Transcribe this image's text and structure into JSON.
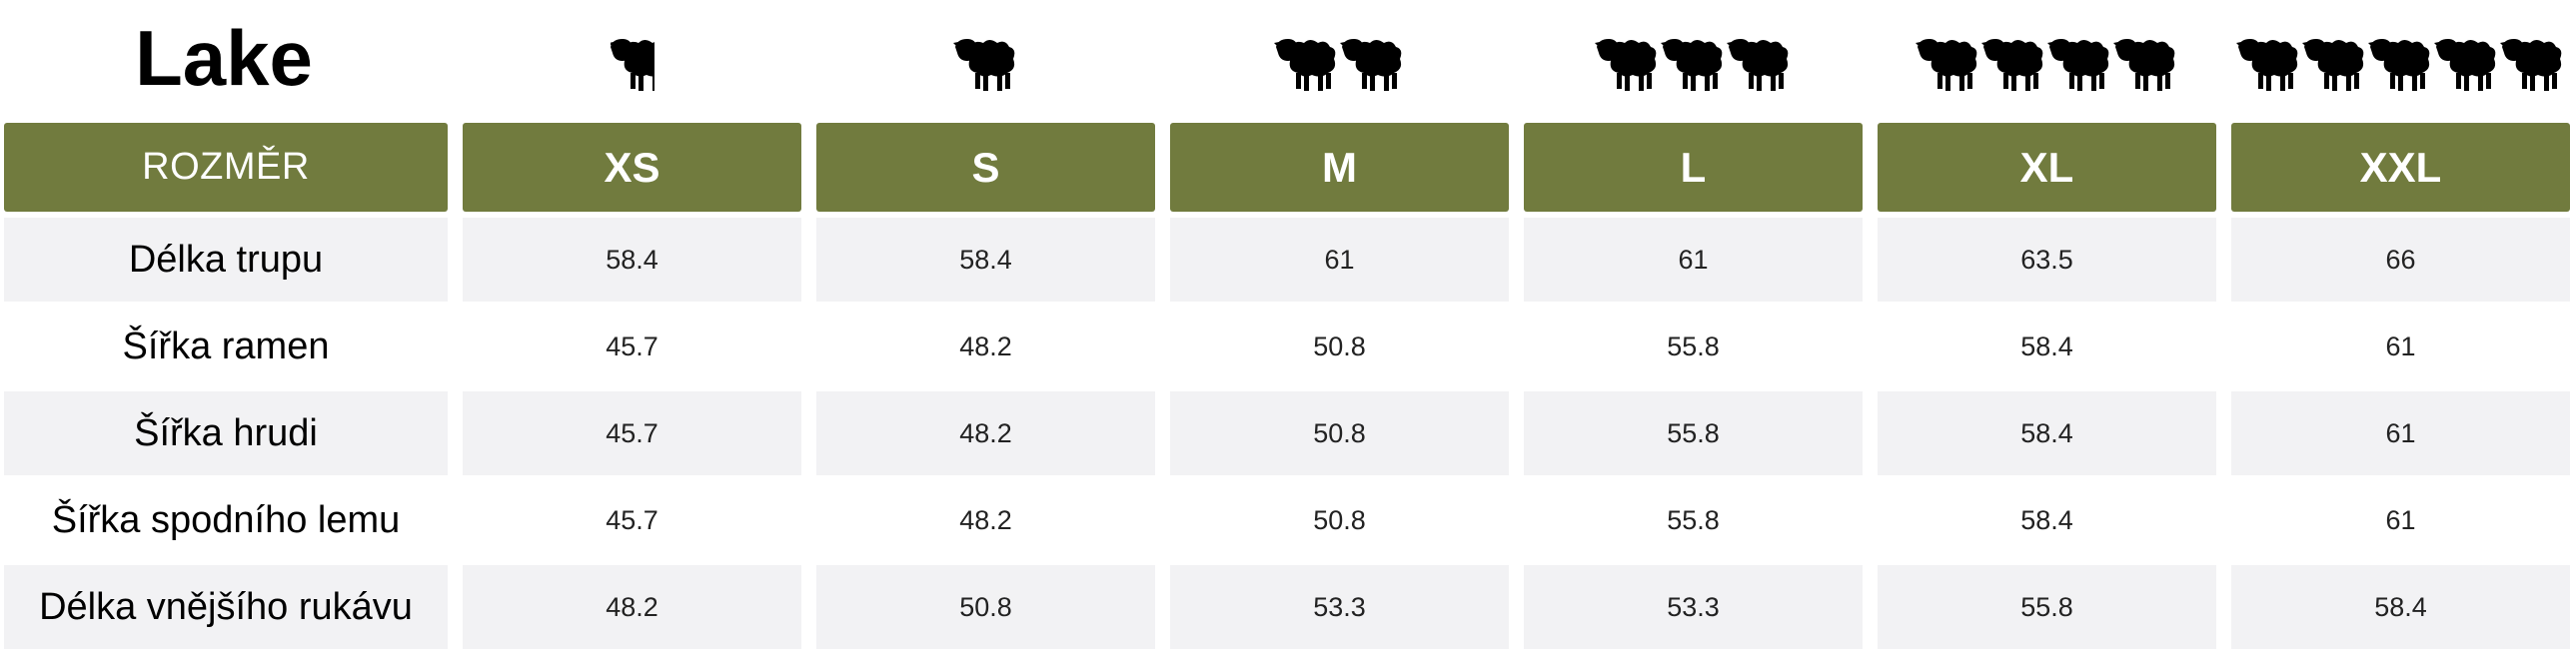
{
  "title": "Lake",
  "header_label": "ROZMĚR",
  "sizes": [
    {
      "label": "XS",
      "sheep": 1,
      "partial": true
    },
    {
      "label": "S",
      "sheep": 1,
      "partial": false
    },
    {
      "label": "M",
      "sheep": 2,
      "partial": false
    },
    {
      "label": "L",
      "sheep": 3,
      "partial": false
    },
    {
      "label": "XL",
      "sheep": 4,
      "partial": false
    },
    {
      "label": "XXL",
      "sheep": 5,
      "partial": false
    }
  ],
  "rows": [
    {
      "label": "Délka trupu",
      "values": [
        "58.4",
        "58.4",
        "61",
        "61",
        "63.5",
        "66"
      ],
      "shaded": true
    },
    {
      "label": "Šířka ramen",
      "values": [
        "45.7",
        "48.2",
        "50.8",
        "55.8",
        "58.4",
        "61"
      ],
      "shaded": false
    },
    {
      "label": "Šířka hrudi",
      "values": [
        "45.7",
        "48.2",
        "50.8",
        "55.8",
        "58.4",
        "61"
      ],
      "shaded": true
    },
    {
      "label": "Šířka spodního lemu",
      "values": [
        "45.7",
        "48.2",
        "50.8",
        "55.8",
        "58.4",
        "61"
      ],
      "shaded": false
    },
    {
      "label": "Délka vnějšího rukávu",
      "values": [
        "48.2",
        "50.8",
        "53.3",
        "53.3",
        "55.8",
        "58.4"
      ],
      "shaded": true
    }
  ],
  "colors": {
    "header_bg": "#717b3e",
    "row_shade": "#f2f2f4"
  },
  "icons": {
    "size_indicator": "sheep-icon"
  }
}
